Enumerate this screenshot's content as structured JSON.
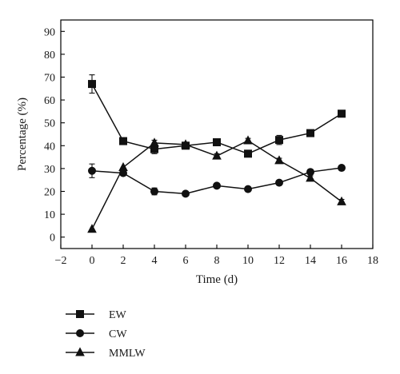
{
  "chart_data": {
    "type": "line",
    "xlabel": "Time (d)",
    "ylabel": "Percentage (%)",
    "xlim": [
      -2,
      18
    ],
    "ylim": [
      -5,
      95
    ],
    "xticks": [
      -2,
      0,
      2,
      4,
      6,
      8,
      10,
      12,
      14,
      16,
      18
    ],
    "yticks": [
      0,
      10,
      20,
      30,
      40,
      50,
      60,
      70,
      80,
      90
    ],
    "x": [
      0,
      2,
      4,
      6,
      8,
      10,
      12,
      14,
      16
    ],
    "grid": false,
    "legend_position": "bottom-left",
    "series": [
      {
        "name": "EW",
        "marker": "square",
        "values": [
          67,
          42,
          38.5,
          40,
          41.5,
          36.5,
          42.5,
          45.5,
          54
        ],
        "errors": [
          4,
          0.5,
          2,
          1,
          0.5,
          0.5,
          2,
          0.5,
          0.5
        ]
      },
      {
        "name": "CW",
        "marker": "circle",
        "values": [
          29,
          28,
          20,
          19,
          22.5,
          21,
          23.8,
          28.5,
          30.3
        ],
        "errors": [
          3,
          0.5,
          1.5,
          0.5,
          0.5,
          0.5,
          0.5,
          1,
          0.5
        ]
      },
      {
        "name": "MMLW",
        "marker": "triangle",
        "values": [
          3.5,
          30.5,
          41.2,
          40.5,
          35.5,
          42.2,
          33.5,
          25.8,
          15.5
        ],
        "errors": [
          0.3,
          0.5,
          1.2,
          1,
          1,
          1,
          1,
          1,
          1
        ]
      }
    ]
  }
}
